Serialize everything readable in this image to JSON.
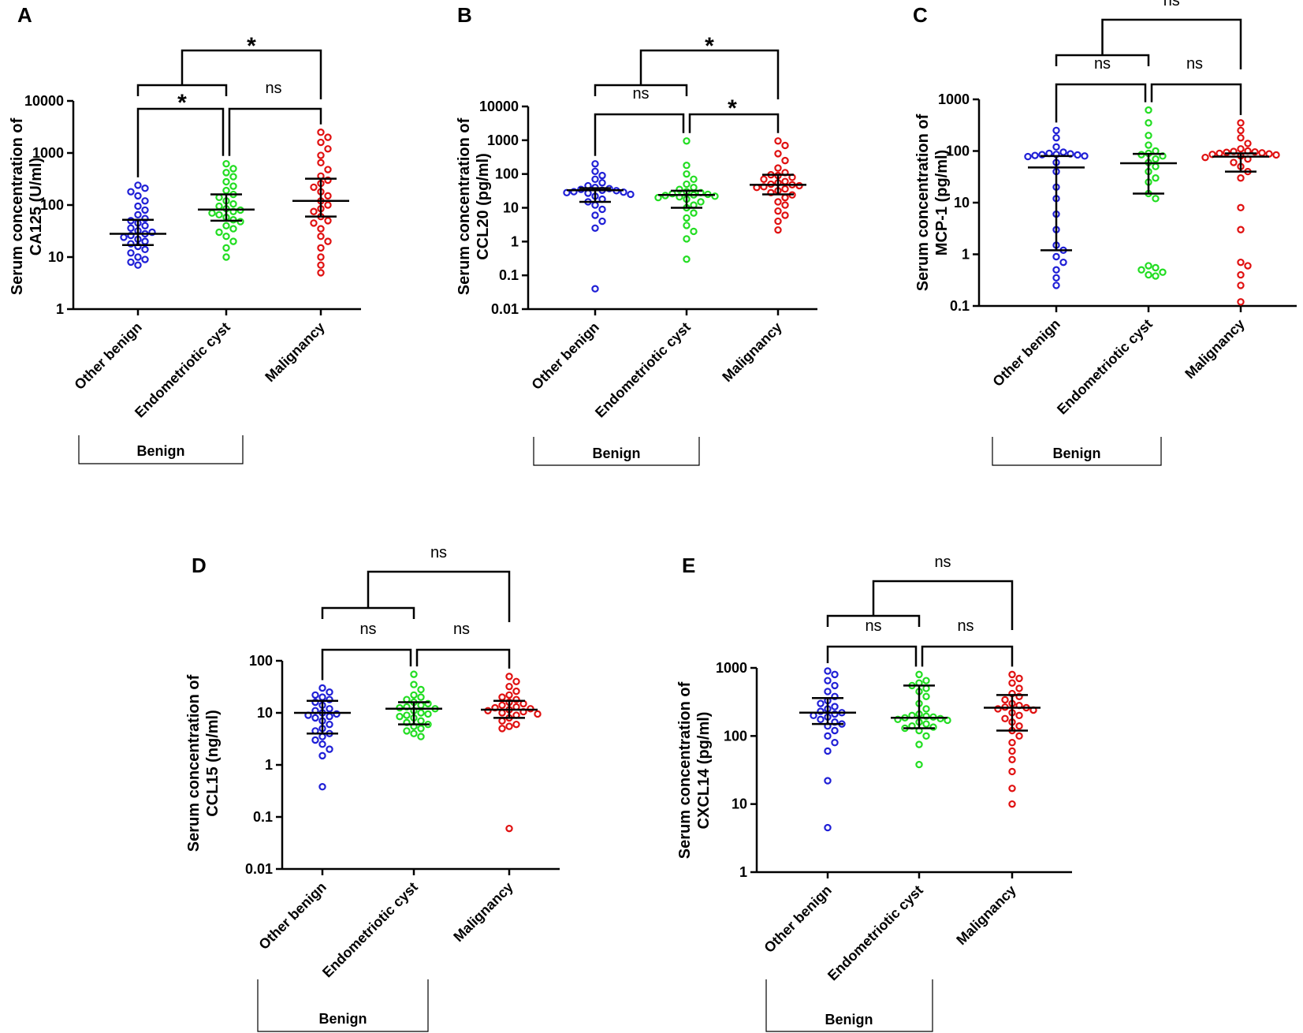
{
  "chart_data": [
    {
      "type": "scatter",
      "panel_label": "A",
      "ylabel": [
        "Serum concentration of",
        "CA125 (U/ml)"
      ],
      "yscale": "log",
      "ylim": [
        1,
        10000
      ],
      "yticks": [
        "1",
        "10",
        "100",
        "1000",
        "10000"
      ],
      "categories": [
        "Other benign",
        "Endometriotic cyst",
        "Malignancy"
      ],
      "group_label": "Benign",
      "series": [
        {
          "name": "Other benign",
          "color": "#1f1fd6",
          "median": 28,
          "q1": 17,
          "q3": 52,
          "values": [
            240,
            210,
            180,
            150,
            120,
            95,
            80,
            65,
            55,
            50,
            45,
            40,
            36,
            32,
            30,
            28,
            26,
            24,
            22,
            20,
            18,
            16,
            14,
            12,
            10,
            9,
            8,
            7
          ]
        },
        {
          "name": "Endometriotic cyst",
          "color": "#22dd22",
          "median": 82,
          "q1": 50,
          "q3": 160,
          "values": [
            620,
            500,
            420,
            350,
            280,
            230,
            190,
            160,
            140,
            120,
            105,
            95,
            85,
            80,
            75,
            70,
            65,
            58,
            52,
            48,
            40,
            35,
            30,
            25,
            20,
            15,
            10
          ]
        },
        {
          "name": "Malignancy",
          "color": "#e01010",
          "median": 120,
          "q1": 60,
          "q3": 320,
          "values": [
            2500,
            2000,
            1600,
            1200,
            900,
            650,
            480,
            360,
            300,
            260,
            220,
            180,
            150,
            120,
            100,
            85,
            75,
            60,
            50,
            45,
            35,
            25,
            20,
            15,
            10,
            7,
            5
          ]
        }
      ],
      "comparisons": [
        {
          "pair": [
            0,
            1
          ],
          "label": "*"
        },
        {
          "pair": [
            1,
            2
          ],
          "label": "ns"
        },
        {
          "pair": [
            0,
            2
          ],
          "label": "*"
        }
      ]
    },
    {
      "type": "scatter",
      "panel_label": "B",
      "ylabel": [
        "Serum concentration of",
        "CCL20 (pg/ml)"
      ],
      "yscale": "log",
      "ylim": [
        0.01,
        10000
      ],
      "yticks": [
        "0.01",
        "0.1",
        "1",
        "10",
        "100",
        "1000",
        "10000"
      ],
      "categories": [
        "Other benign",
        "Endometriotic cyst",
        "Malignancy"
      ],
      "group_label": "Benign",
      "series": [
        {
          "name": "Other benign",
          "color": "#1f1fd6",
          "median": 33,
          "q1": 15,
          "q3": 38,
          "values": [
            200,
            120,
            90,
            70,
            55,
            45,
            40,
            37,
            35,
            33,
            32,
            30,
            29,
            28,
            27,
            25,
            22,
            18,
            15,
            12,
            9,
            6,
            4,
            2.5,
            0.04
          ]
        },
        {
          "name": "Endometriotic cyst",
          "color": "#22dd22",
          "median": 24,
          "q1": 10,
          "q3": 32,
          "values": [
            950,
            180,
            100,
            70,
            50,
            40,
            35,
            30,
            28,
            26,
            25,
            24,
            23,
            22,
            21,
            20,
            18,
            15,
            12,
            10,
            7,
            5,
            3,
            2,
            1.2,
            0.3
          ]
        },
        {
          "name": "Malignancy",
          "color": "#e01010",
          "median": 48,
          "q1": 25,
          "q3": 95,
          "values": [
            950,
            700,
            400,
            250,
            150,
            110,
            95,
            90,
            80,
            70,
            60,
            55,
            50,
            48,
            45,
            42,
            40,
            36,
            32,
            28,
            24,
            20,
            15,
            12,
            8,
            6,
            4,
            2.2
          ]
        }
      ],
      "comparisons": [
        {
          "pair": [
            0,
            1
          ],
          "label": "ns"
        },
        {
          "pair": [
            1,
            2
          ],
          "label": "*"
        },
        {
          "pair": [
            0,
            2
          ],
          "label": "*"
        }
      ]
    },
    {
      "type": "scatter",
      "panel_label": "C",
      "ylabel": [
        "Serum concentration of",
        "MCP-1 (pg/ml)"
      ],
      "yscale": "log",
      "ylim": [
        0.1,
        1000
      ],
      "yticks": [
        "0.1",
        "1",
        "10",
        "100",
        "1000"
      ],
      "categories": [
        "Other benign",
        "Endometriotic cyst",
        "Malignancy"
      ],
      "group_label": "Benign",
      "series": [
        {
          "name": "Other benign",
          "color": "#1f1fd6",
          "median": 48,
          "q1": 1.2,
          "q3": 80,
          "values": [
            250,
            180,
            120,
            95,
            90,
            88,
            86,
            85,
            84,
            82,
            80,
            78,
            60,
            40,
            20,
            12,
            6,
            3,
            1.5,
            1.2,
            0.9,
            0.7,
            0.5,
            0.35,
            0.25
          ]
        },
        {
          "name": "Endometriotic cyst",
          "color": "#22dd22",
          "median": 58,
          "q1": 15,
          "q3": 88,
          "values": [
            620,
            350,
            200,
            130,
            100,
            90,
            85,
            80,
            70,
            60,
            50,
            40,
            30,
            25,
            15,
            12,
            0.6,
            0.55,
            0.5,
            0.45,
            0.4,
            0.38
          ]
        },
        {
          "name": "Malignancy",
          "color": "#e01010",
          "median": 78,
          "q1": 40,
          "q3": 90,
          "values": [
            350,
            250,
            180,
            140,
            110,
            100,
            98,
            96,
            94,
            92,
            90,
            88,
            86,
            84,
            80,
            75,
            70,
            60,
            50,
            40,
            30,
            8,
            3,
            0.7,
            0.6,
            0.4,
            0.25,
            0.12
          ]
        }
      ],
      "comparisons": [
        {
          "pair": [
            0,
            1
          ],
          "label": "ns"
        },
        {
          "pair": [
            1,
            2
          ],
          "label": "ns"
        },
        {
          "pair": [
            0,
            2
          ],
          "label": "ns"
        }
      ]
    },
    {
      "type": "scatter",
      "panel_label": "D",
      "ylabel": [
        "Serum concentration of",
        "CCL15 (ng/ml)"
      ],
      "yscale": "log",
      "ylim": [
        0.01,
        100
      ],
      "yticks": [
        "0.01",
        "0.1",
        "1",
        "10",
        "100"
      ],
      "categories": [
        "Other benign",
        "Endometriotic cyst",
        "Malignancy"
      ],
      "group_label": "Benign",
      "series": [
        {
          "name": "Other benign",
          "color": "#1f1fd6",
          "median": 10,
          "q1": 4,
          "q3": 17,
          "values": [
            30,
            25,
            22,
            20,
            18,
            16,
            14,
            12,
            11,
            10,
            9.5,
            9,
            8.5,
            8,
            7,
            6,
            5,
            4.5,
            4,
            3.5,
            3,
            2.5,
            2,
            1.5,
            0.38
          ]
        },
        {
          "name": "Endometriotic cyst",
          "color": "#22dd22",
          "median": 12,
          "q1": 6,
          "q3": 16,
          "values": [
            55,
            35,
            28,
            22,
            20,
            18,
            16,
            15,
            14,
            13,
            12.5,
            12,
            11,
            10,
            9.5,
            9,
            8.5,
            8,
            7,
            6.5,
            6,
            5.5,
            5,
            4.5,
            4,
            3.5
          ]
        },
        {
          "name": "Malignancy",
          "color": "#e01010",
          "median": 11.5,
          "q1": 8,
          "q3": 17,
          "values": [
            50,
            40,
            32,
            26,
            22,
            20,
            18,
            16,
            15,
            14,
            13,
            12.5,
            12,
            11.5,
            11,
            10.5,
            10,
            9.5,
            9,
            8,
            7,
            6,
            5.5,
            5,
            0.06
          ]
        }
      ],
      "comparisons": [
        {
          "pair": [
            0,
            1
          ],
          "label": "ns"
        },
        {
          "pair": [
            1,
            2
          ],
          "label": "ns"
        },
        {
          "pair": [
            0,
            2
          ],
          "label": "ns"
        }
      ]
    },
    {
      "type": "scatter",
      "panel_label": "E",
      "ylabel": [
        "Serum concentration of",
        "CXCL14 (pg/ml)"
      ],
      "yscale": "log",
      "ylim": [
        1,
        1000
      ],
      "yticks": [
        "1",
        "10",
        "100",
        "1000"
      ],
      "categories": [
        "Other benign",
        "Endometriotic cyst",
        "Malignancy"
      ],
      "group_label": "Benign",
      "series": [
        {
          "name": "Other benign",
          "color": "#1f1fd6",
          "median": 220,
          "q1": 150,
          "q3": 360,
          "values": [
            900,
            800,
            650,
            550,
            450,
            380,
            330,
            300,
            270,
            250,
            230,
            220,
            210,
            200,
            190,
            175,
            160,
            150,
            140,
            120,
            100,
            80,
            60,
            22,
            4.5
          ]
        },
        {
          "name": "Endometriotic cyst",
          "color": "#22dd22",
          "median": 185,
          "q1": 130,
          "q3": 550,
          "values": [
            800,
            650,
            600,
            550,
            500,
            450,
            380,
            300,
            250,
            210,
            200,
            195,
            190,
            185,
            180,
            175,
            170,
            160,
            150,
            140,
            135,
            130,
            120,
            100,
            75,
            38
          ]
        },
        {
          "name": "Malignancy",
          "color": "#e01010",
          "median": 260,
          "q1": 120,
          "q3": 400,
          "values": [
            800,
            700,
            600,
            500,
            420,
            380,
            340,
            300,
            280,
            265,
            260,
            250,
            240,
            220,
            200,
            180,
            160,
            140,
            120,
            100,
            80,
            60,
            45,
            30,
            17,
            10
          ]
        }
      ],
      "comparisons": [
        {
          "pair": [
            0,
            1
          ],
          "label": "ns"
        },
        {
          "pair": [
            1,
            2
          ],
          "label": "ns"
        },
        {
          "pair": [
            0,
            2
          ],
          "label": "ns"
        }
      ]
    }
  ]
}
